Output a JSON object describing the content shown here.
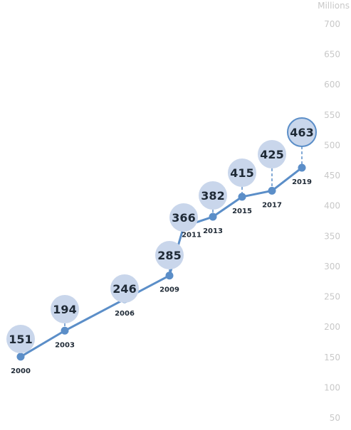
{
  "colors": {
    "line": "#5b8ec8",
    "point": "#5b8ec8",
    "bubble_fill": "#c9d6eb",
    "bubble_highlight_stroke": "#5b8ec8",
    "value_text": "#1f2a36",
    "axis_text": "#c8c8c8"
  },
  "chart_data": {
    "type": "line",
    "ylabel": "Millions",
    "ylim": [
      50,
      700
    ],
    "y_ticks": [
      "700",
      "650",
      "600",
      "550",
      "500",
      "450",
      "400",
      "350",
      "300",
      "250",
      "200",
      "150",
      "100",
      "50"
    ],
    "y_axis_position": "right",
    "grid": false,
    "series": [
      {
        "x": [
          "2000",
          "2003",
          "2006",
          "2009",
          "2011",
          "2013",
          "2015",
          "2017",
          "2019"
        ],
        "values": [
          151,
          194,
          246,
          285,
          366,
          382,
          415,
          425,
          463
        ],
        "value_labels": [
          "151",
          "194",
          "246",
          "285",
          "366",
          "382",
          "415",
          "425",
          "463"
        ]
      }
    ]
  }
}
